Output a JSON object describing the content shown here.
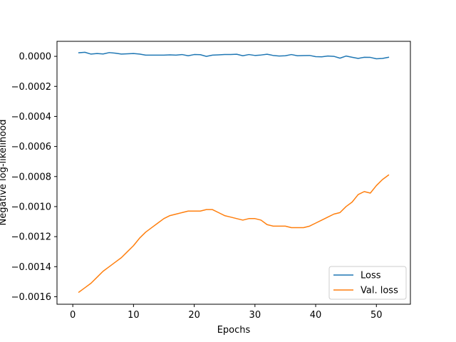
{
  "chart_data": {
    "type": "line",
    "title": "",
    "xlabel": "Epochs",
    "ylabel": "Negative log-likelihood",
    "xlim": [
      -2.6,
      55.6
    ],
    "ylim": [
      -0.00165,
      0.0001
    ],
    "xticks": [
      0,
      10,
      20,
      30,
      40,
      50
    ],
    "yticks": [
      -0.0016,
      -0.0014,
      -0.0012,
      -0.001,
      -0.0008,
      -0.0006,
      -0.0004,
      -0.0002,
      0.0
    ],
    "ytick_labels": [
      "−0.0016",
      "−0.0014",
      "−0.0012",
      "−0.0010",
      "−0.0008",
      "−0.0006",
      "−0.0004",
      "−0.0002",
      "0.0000"
    ],
    "grid": false,
    "legend_position": "lower-right",
    "x": [
      1,
      2,
      3,
      4,
      5,
      6,
      7,
      8,
      9,
      10,
      11,
      12,
      13,
      14,
      15,
      16,
      17,
      18,
      19,
      20,
      21,
      22,
      23,
      24,
      25,
      26,
      27,
      28,
      29,
      30,
      31,
      32,
      33,
      34,
      35,
      36,
      37,
      38,
      39,
      40,
      41,
      42,
      43,
      44,
      45,
      46,
      47,
      48,
      49,
      50,
      51,
      52
    ],
    "series": [
      {
        "name": "Loss",
        "color": "#1f77b4",
        "values": [
          2.4e-05,
          2.7e-05,
          1.5e-05,
          1.9e-05,
          1.6e-05,
          2.5e-05,
          2.1e-05,
          1.5e-05,
          1.7e-05,
          1.9e-05,
          1.5e-05,
          8e-06,
          8e-06,
          8e-06,
          8e-06,
          1e-05,
          8e-06,
          1.2e-05,
          4e-06,
          1.2e-05,
          1.1e-05,
          0.0,
          8e-06,
          1e-05,
          1.2e-05,
          1.2e-05,
          1.4e-05,
          4e-06,
          1.2e-05,
          6e-06,
          9e-06,
          1.4e-05,
          6e-06,
          2e-06,
          4e-06,
          1.2e-05,
          4e-06,
          5e-06,
          6e-06,
          -2e-06,
          -3e-06,
          2e-06,
          0.0,
          -1.2e-05,
          2e-06,
          -6e-06,
          -1.4e-05,
          -6e-06,
          -7e-06,
          -1.6e-05,
          -1.4e-05,
          -6e-06
        ]
      },
      {
        "name": "Val. loss",
        "color": "#ff7f0e",
        "values": [
          -0.00157,
          -0.00154,
          -0.00151,
          -0.00147,
          -0.00143,
          -0.0014,
          -0.00137,
          -0.00134,
          -0.0013,
          -0.00126,
          -0.00121,
          -0.00117,
          -0.00114,
          -0.00111,
          -0.00108,
          -0.00106,
          -0.00105,
          -0.00104,
          -0.00103,
          -0.00103,
          -0.00103,
          -0.00102,
          -0.00102,
          -0.00104,
          -0.00106,
          -0.00107,
          -0.00108,
          -0.00109,
          -0.00108,
          -0.00108,
          -0.00109,
          -0.00112,
          -0.00113,
          -0.00113,
          -0.00113,
          -0.00114,
          -0.00114,
          -0.00114,
          -0.00113,
          -0.00111,
          -0.00109,
          -0.00107,
          -0.00105,
          -0.00104,
          -0.001,
          -0.00097,
          -0.00092,
          -0.0009,
          -0.00091,
          -0.00086,
          -0.00082,
          -0.00079
        ]
      }
    ]
  }
}
